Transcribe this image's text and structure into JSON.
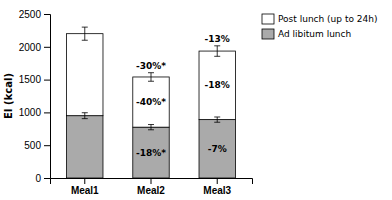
{
  "chart_data": {
    "type": "bar",
    "stacked": true,
    "categories": [
      "Meal1",
      "Meal2",
      "Meal3"
    ],
    "series": [
      {
        "name": "Ad libitum lunch",
        "color": "#aaaaaa",
        "values": [
          950,
          775,
          890
        ],
        "errors": [
          45,
          40,
          40
        ],
        "labels": [
          null,
          "-18%*",
          "-7%"
        ]
      },
      {
        "name": "Post lunch (up to 24h)",
        "color": "#ffffff",
        "values": [
          1250,
          765,
          1045
        ],
        "errors": [
          100,
          65,
          80
        ],
        "labels": [
          null,
          "-40%*",
          "-18%"
        ]
      }
    ],
    "total_labels": [
      null,
      "-30%*",
      "-13%"
    ],
    "ylabel": "EI (kcal)",
    "ylim": [
      0,
      2500
    ],
    "yticks": [
      0,
      500,
      1000,
      1500,
      2000,
      2500
    ],
    "grid": false,
    "legend": "upper right"
  }
}
